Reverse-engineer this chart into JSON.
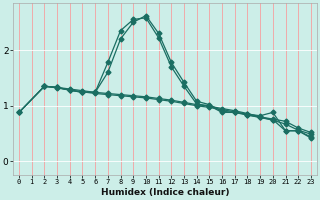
{
  "xlabel": "Humidex (Indice chaleur)",
  "bg_color": "#cceee8",
  "grid_color_v": "#f5a0a0",
  "grid_color_h": "#ffffff",
  "line_color": "#1a6e62",
  "x_ticks": [
    0,
    1,
    2,
    3,
    4,
    5,
    6,
    7,
    8,
    9,
    10,
    11,
    12,
    13,
    14,
    15,
    16,
    17,
    18,
    19,
    20,
    21,
    22,
    23
  ],
  "y_ticks": [
    0,
    1,
    2
  ],
  "ylim": [
    -0.25,
    2.85
  ],
  "xlim": [
    -0.5,
    23.5
  ],
  "series": [
    {
      "x": [
        0,
        2,
        3,
        4,
        5,
        6,
        7,
        8,
        9,
        10,
        11,
        12,
        13,
        14,
        15,
        16,
        17,
        18,
        19,
        20,
        21,
        22,
        23
      ],
      "y": [
        0.88,
        1.35,
        1.32,
        1.28,
        1.25,
        1.22,
        1.2,
        1.18,
        1.16,
        1.14,
        1.11,
        1.08,
        1.04,
        1.0,
        0.97,
        0.93,
        0.89,
        0.84,
        0.79,
        0.74,
        0.67,
        0.56,
        0.49
      ]
    },
    {
      "x": [
        0,
        2,
        3,
        4,
        5,
        6,
        7,
        8,
        9,
        10,
        11,
        12,
        13,
        14,
        15,
        16,
        17,
        18,
        19,
        20,
        21,
        22,
        23
      ],
      "y": [
        0.88,
        1.35,
        1.33,
        1.3,
        1.27,
        1.24,
        1.22,
        1.2,
        1.18,
        1.16,
        1.13,
        1.1,
        1.06,
        1.02,
        0.99,
        0.95,
        0.91,
        0.86,
        0.8,
        0.76,
        0.72,
        0.6,
        0.52
      ]
    },
    {
      "x": [
        0,
        2,
        3,
        4,
        5,
        6,
        7,
        8,
        9,
        10,
        11,
        12,
        13,
        14,
        15,
        16,
        17,
        18,
        19,
        20,
        21,
        22,
        23
      ],
      "y": [
        0.88,
        1.35,
        1.33,
        1.28,
        1.24,
        1.24,
        1.6,
        2.2,
        2.5,
        2.62,
        2.3,
        1.78,
        1.42,
        1.08,
        1.02,
        0.9,
        0.88,
        0.85,
        0.82,
        0.88,
        0.55,
        0.55,
        0.44
      ]
    },
    {
      "x": [
        2,
        3,
        4,
        5,
        6,
        7,
        8,
        9,
        10,
        11,
        12,
        13,
        14,
        15,
        16,
        17,
        18,
        19,
        20,
        21,
        22,
        23
      ],
      "y": [
        1.35,
        1.33,
        1.28,
        1.24,
        1.24,
        1.78,
        2.35,
        2.55,
        2.58,
        2.22,
        1.7,
        1.35,
        1.03,
        1.0,
        0.88,
        0.88,
        0.83,
        0.79,
        0.75,
        0.55,
        0.55,
        0.42
      ]
    }
  ]
}
